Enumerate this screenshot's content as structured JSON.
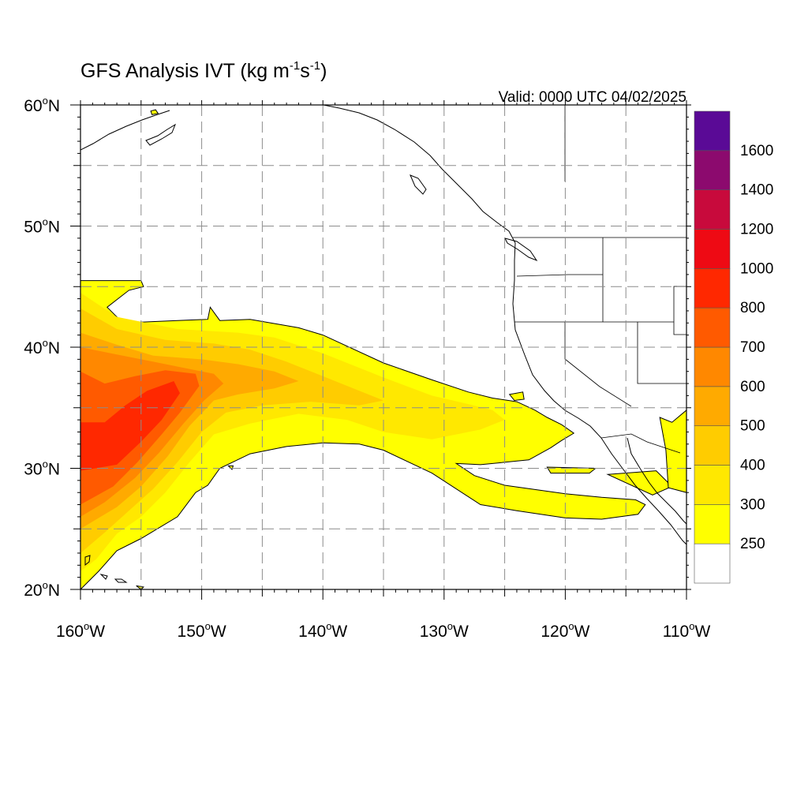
{
  "title": {
    "main": "GFS Analysis IVT (kg m",
    "exp1": "-1",
    "mid": "s",
    "exp2": "-1",
    "close": ")"
  },
  "valid_label": "Valid: 0000 UTC 04/02/2025",
  "map": {
    "lon_range": [
      -160,
      -110
    ],
    "lat_range": [
      20,
      60
    ],
    "lon_ticks": [
      {
        "lon": -160,
        "num": "160",
        "hem": "W"
      },
      {
        "lon": -150,
        "num": "150",
        "hem": "W"
      },
      {
        "lon": -140,
        "num": "140",
        "hem": "W"
      },
      {
        "lon": -130,
        "num": "130",
        "hem": "W"
      },
      {
        "lon": -120,
        "num": "120",
        "hem": "W"
      },
      {
        "lon": -110,
        "num": "110",
        "hem": "W"
      }
    ],
    "lat_ticks": [
      {
        "lat": 20,
        "num": "20",
        "hem": "N"
      },
      {
        "lat": 30,
        "num": "30",
        "hem": "N"
      },
      {
        "lat": 40,
        "num": "40",
        "hem": "N"
      },
      {
        "lat": 50,
        "num": "50",
        "hem": "N"
      },
      {
        "lat": 60,
        "num": "60",
        "hem": "N"
      }
    ],
    "gridline_style": "dashed, every 5 degrees",
    "ivt_field": [
      {
        "level": 250,
        "polygon": [
          [
            -160,
            45.5
          ],
          [
            -155,
            45.5
          ],
          [
            -154.8,
            45
          ],
          [
            -156,
            44.7
          ],
          [
            -157.8,
            43.3
          ],
          [
            -156.5,
            42
          ],
          [
            -152,
            42.2
          ],
          [
            -149.5,
            42.3
          ],
          [
            -149.3,
            43.3
          ],
          [
            -148.5,
            42.2
          ],
          [
            -146,
            42.3
          ],
          [
            -142,
            41.6
          ],
          [
            -140,
            41
          ],
          [
            -135,
            38.7
          ],
          [
            -131,
            37.3
          ],
          [
            -128,
            36.3
          ],
          [
            -126,
            35.8
          ],
          [
            -124,
            35.5
          ],
          [
            -122.5,
            34.8
          ],
          [
            -121.5,
            34.2
          ],
          [
            -120.3,
            33.6
          ],
          [
            -119.3,
            32.9
          ],
          [
            -120.3,
            32.3
          ],
          [
            -121.2,
            31.7
          ],
          [
            -123,
            30.7
          ],
          [
            -127,
            30.3
          ],
          [
            -129,
            30.4
          ],
          [
            -127.5,
            29.4
          ],
          [
            -125,
            28.6
          ],
          [
            -120,
            27.9
          ],
          [
            -117,
            27.6
          ],
          [
            -114.2,
            27.4
          ],
          [
            -113.4,
            27
          ],
          [
            -114,
            26.2
          ],
          [
            -117,
            25.8
          ],
          [
            -120,
            25.9
          ],
          [
            -124,
            26.5
          ],
          [
            -127,
            27
          ],
          [
            -131,
            29.6
          ],
          [
            -135,
            31.5
          ],
          [
            -137,
            32
          ],
          [
            -140,
            32.1
          ],
          [
            -143,
            31.8
          ],
          [
            -146,
            31.2
          ],
          [
            -148.5,
            30
          ],
          [
            -149.5,
            28.6
          ],
          [
            -150.5,
            28
          ],
          [
            -152,
            26
          ],
          [
            -155,
            24.2
          ],
          [
            -157,
            23.2
          ],
          [
            -158.5,
            21.5
          ],
          [
            -160,
            20
          ]
        ]
      },
      {
        "level": 300,
        "polygon": [
          [
            -160,
            44.5
          ],
          [
            -157,
            42.5
          ],
          [
            -152,
            41.5
          ],
          [
            -147,
            41.2
          ],
          [
            -144,
            40.8
          ],
          [
            -140,
            39.5
          ],
          [
            -135,
            37.5
          ],
          [
            -131,
            36
          ],
          [
            -128,
            35.3
          ],
          [
            -126,
            34.8
          ],
          [
            -125,
            34
          ],
          [
            -127,
            33.2
          ],
          [
            -131,
            32.4
          ],
          [
            -135,
            33
          ],
          [
            -138,
            34
          ],
          [
            -142,
            34.5
          ],
          [
            -146,
            33.7
          ],
          [
            -149,
            32.8
          ],
          [
            -151,
            30.5
          ],
          [
            -153,
            28
          ],
          [
            -155,
            26
          ],
          [
            -157,
            24.6
          ],
          [
            -158.7,
            22.5
          ],
          [
            -160,
            21.5
          ]
        ]
      },
      {
        "level": 400,
        "polygon": [
          [
            -160,
            43.2
          ],
          [
            -157,
            41.5
          ],
          [
            -153,
            40.6
          ],
          [
            -149,
            40.3
          ],
          [
            -146,
            39.8
          ],
          [
            -143,
            38.8
          ],
          [
            -140,
            37.6
          ],
          [
            -137,
            36.4
          ],
          [
            -135,
            35.6
          ],
          [
            -137,
            35.2
          ],
          [
            -141,
            35.5
          ],
          [
            -145,
            35.2
          ],
          [
            -148,
            34.6
          ],
          [
            -150,
            33
          ],
          [
            -152,
            30.5
          ],
          [
            -154,
            28.3
          ],
          [
            -156,
            26.5
          ],
          [
            -158,
            24.7
          ],
          [
            -160,
            23
          ]
        ]
      },
      {
        "level": 500,
        "polygon": [
          [
            -160,
            41.2
          ],
          [
            -157,
            40.2
          ],
          [
            -154,
            39.3
          ],
          [
            -150,
            39
          ],
          [
            -147,
            38.6
          ],
          [
            -144,
            38
          ],
          [
            -142,
            37.2
          ],
          [
            -144,
            36.6
          ],
          [
            -147,
            36.1
          ],
          [
            -149,
            35.6
          ],
          [
            -151,
            33.5
          ],
          [
            -152.8,
            31
          ],
          [
            -155,
            28.5
          ],
          [
            -157,
            26.8
          ],
          [
            -160,
            25
          ]
        ]
      },
      {
        "level": 600,
        "polygon": [
          [
            -160,
            40
          ],
          [
            -157.5,
            39.5
          ],
          [
            -154,
            38.8
          ],
          [
            -151.5,
            38.3
          ],
          [
            -149,
            37.8
          ],
          [
            -148.2,
            37
          ],
          [
            -149.8,
            35.6
          ],
          [
            -151.5,
            33.7
          ],
          [
            -153.5,
            31.3
          ],
          [
            -155.5,
            29.2
          ],
          [
            -158,
            27.2
          ],
          [
            -160,
            26
          ]
        ]
      },
      {
        "level": 700,
        "polygon": [
          [
            -160,
            38
          ],
          [
            -158,
            37
          ],
          [
            -155.5,
            37.6
          ],
          [
            -153,
            38.1
          ],
          [
            -150.5,
            37.8
          ],
          [
            -150.2,
            36.8
          ],
          [
            -151.8,
            34.6
          ],
          [
            -153.3,
            32.8
          ],
          [
            -155.3,
            30.5
          ],
          [
            -157.3,
            28.5
          ],
          [
            -160,
            27
          ]
        ]
      },
      {
        "level": 800,
        "polygon": [
          [
            -160,
            33.8
          ],
          [
            -158,
            33.8
          ],
          [
            -156.3,
            35.2
          ],
          [
            -154.5,
            36.4
          ],
          [
            -152.3,
            37.2
          ],
          [
            -151.8,
            36.2
          ],
          [
            -153.3,
            34
          ],
          [
            -155,
            32.2
          ],
          [
            -157,
            30.3
          ],
          [
            -160,
            29.8
          ]
        ]
      },
      {
        "level": 250,
        "polygon": [
          [
            -116.5,
            29.5
          ],
          [
            -112.5,
            29.8
          ],
          [
            -111.2,
            28.5
          ],
          [
            -112.8,
            27.8
          ]
        ]
      },
      {
        "level": 250,
        "polygon": [
          [
            -112.2,
            34.2
          ],
          [
            -111.2,
            33.8
          ],
          [
            -110,
            34.8
          ],
          [
            -110,
            28
          ],
          [
            -111.5,
            28.4
          ],
          [
            -111.7,
            31.5
          ]
        ]
      },
      {
        "level": 250,
        "polygon": [
          [
            -124.6,
            36.1
          ],
          [
            -123.5,
            36.3
          ],
          [
            -123.4,
            35.7
          ],
          [
            -124.2,
            35.6
          ]
        ]
      },
      {
        "level": 250,
        "polygon": [
          [
            -121.5,
            30.1
          ],
          [
            -117.5,
            30
          ],
          [
            -118,
            29.6
          ],
          [
            -121.2,
            29.6
          ]
        ]
      },
      {
        "level": 250,
        "polygon": [
          [
            -154.2,
            59.5
          ],
          [
            -153.8,
            59.6
          ],
          [
            -153.6,
            59.3
          ],
          [
            -154.1,
            59.2
          ]
        ]
      },
      {
        "level": 250,
        "polygon": [
          [
            -155.4,
            20.3
          ],
          [
            -154.8,
            20.2
          ],
          [
            -155,
            20
          ]
        ]
      },
      {
        "level": 250,
        "polygon": [
          [
            -147.8,
            30.2
          ],
          [
            -147.4,
            30.2
          ],
          [
            -147.5,
            29.9
          ]
        ]
      }
    ],
    "colorbar": [
      {
        "color": "#ffffff",
        "label": "250"
      },
      {
        "color": "#ffff00",
        "label": "300"
      },
      {
        "color": "#ffe800",
        "label": "400"
      },
      {
        "color": "#ffcc00",
        "label": "500"
      },
      {
        "color": "#ffaa00",
        "label": "600"
      },
      {
        "color": "#ff8800",
        "label": "700"
      },
      {
        "color": "#ff5a00",
        "label": "800"
      },
      {
        "color": "#ff2800",
        "label": "1000"
      },
      {
        "color": "#ee0a14",
        "label": "1200"
      },
      {
        "color": "#c80a3c",
        "label": "1400"
      },
      {
        "color": "#8c0a6e",
        "label": "1600"
      },
      {
        "color": "#5a0a96",
        "label": ""
      }
    ]
  }
}
